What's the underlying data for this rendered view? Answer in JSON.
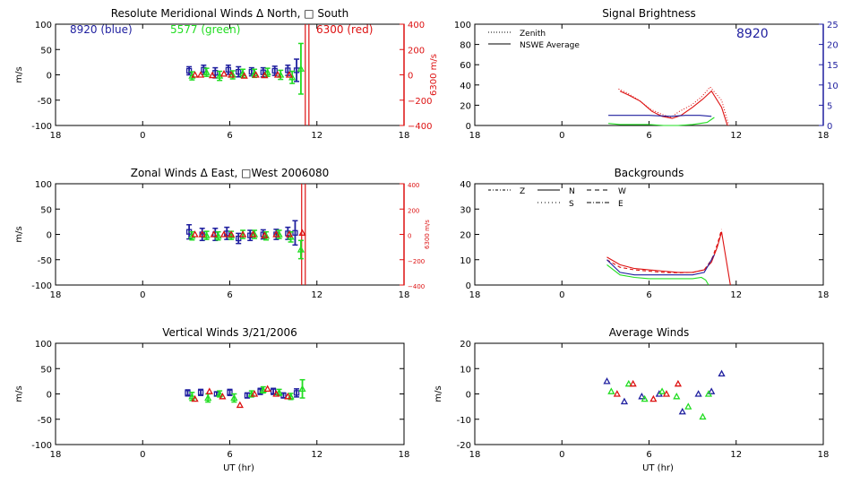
{
  "colors": {
    "blue": "#1f1f9f",
    "green": "#22dd22",
    "red": "#dd1111",
    "black": "#000000",
    "axis_blue": "#1f1f9f"
  },
  "x_ticks": [
    "18",
    "0",
    "6",
    "12",
    "18"
  ],
  "xlabel": "UT (hr)",
  "chart_data": [
    {
      "id": "meridional",
      "type": "scatter",
      "title": "Resolute Meridional Winds Δ North, □ South",
      "ylabel": "m/s",
      "xlim": [
        18,
        42
      ],
      "ylim": [
        -100,
        100
      ],
      "y_ticks": [
        "100",
        "50",
        "0",
        "-50",
        "-100"
      ],
      "y2_label": "6300 m/s",
      "y2_ticks": [
        "400",
        "200",
        "0",
        "−200",
        "−400"
      ],
      "legend_labels": [
        {
          "text": "8920 (blue)",
          "color": "blue"
        },
        {
          "text": "5577 (green)",
          "color": "green"
        },
        {
          "text": "6300 (red)",
          "color": "red"
        }
      ],
      "series": [
        {
          "color": "blue",
          "marker": "square",
          "x": [
            27.2,
            28.2,
            29.0,
            29.9,
            30.6,
            31.5,
            32.3,
            33.1,
            34.0,
            34.6
          ],
          "y": [
            8,
            10,
            4,
            10,
            6,
            6,
            5,
            8,
            9,
            9
          ],
          "err": [
            8,
            9,
            10,
            9,
            10,
            8,
            9,
            9,
            10,
            22
          ]
        },
        {
          "color": "green",
          "marker": "triangle",
          "x": [
            27.4,
            28.4,
            29.3,
            30.2,
            30.9,
            31.7,
            32.6,
            33.5,
            34.3,
            34.9
          ],
          "y": [
            -2,
            5,
            -2,
            0,
            3,
            3,
            5,
            0,
            -5,
            12
          ],
          "err": [
            8,
            8,
            9,
            8,
            8,
            8,
            8,
            9,
            12,
            50
          ]
        },
        {
          "color": "red",
          "marker": "triangle",
          "x": [
            27.6,
            28.0,
            28.8,
            29.6,
            30.1,
            31.0,
            31.8,
            32.4,
            33.3,
            34.1
          ],
          "y": [
            0,
            0,
            -1,
            2,
            0,
            -2,
            0,
            -1,
            0,
            0
          ],
          "err": [
            0,
            0,
            0,
            0,
            0,
            0,
            0,
            0,
            0,
            0
          ]
        }
      ],
      "red_spike_x": [
        35.2,
        35.45
      ]
    },
    {
      "id": "zonal",
      "type": "scatter",
      "title": "Zonal Winds Δ East, □West 2006080",
      "ylabel": "m/s",
      "xlim": [
        18,
        42
      ],
      "ylim": [
        -100,
        100
      ],
      "y_ticks": [
        "100",
        "50",
        "0",
        "-50",
        "-100"
      ],
      "y2_label": "6300 m/s",
      "y2_ticks": [
        "400",
        "200",
        "0",
        "−200",
        "−400"
      ],
      "series": [
        {
          "color": "blue",
          "marker": "square",
          "x": [
            27.2,
            28.1,
            29.0,
            29.8,
            30.6,
            31.4,
            32.3,
            33.2,
            34.0,
            34.5
          ],
          "y": [
            5,
            0,
            0,
            2,
            -8,
            -2,
            0,
            0,
            2,
            3
          ],
          "err": [
            14,
            12,
            12,
            12,
            10,
            10,
            9,
            10,
            12,
            24
          ]
        },
        {
          "color": "green",
          "marker": "triangle",
          "x": [
            27.4,
            28.4,
            29.2,
            30.1,
            30.9,
            31.7,
            32.5,
            33.4,
            34.2,
            34.9
          ],
          "y": [
            -3,
            -2,
            -3,
            -2,
            0,
            0,
            -3,
            0,
            -5,
            -30
          ],
          "err": [
            8,
            8,
            8,
            8,
            8,
            8,
            8,
            8,
            10,
            18
          ]
        },
        {
          "color": "red",
          "marker": "triangle",
          "x": [
            27.6,
            28.1,
            28.9,
            29.6,
            30.1,
            30.9,
            31.6,
            32.4,
            33.2,
            34.1,
            35.0
          ],
          "y": [
            0,
            0,
            0,
            0,
            0,
            0,
            0,
            -2,
            0,
            0,
            3
          ],
          "err": [
            0,
            0,
            0,
            0,
            0,
            0,
            0,
            0,
            0,
            0,
            0
          ]
        }
      ],
      "red_spike_x": [
        34.95,
        35.2
      ]
    },
    {
      "id": "vertical",
      "type": "scatter",
      "title": "Vertical Winds 3/21/2006",
      "ylabel": "m/s",
      "xlim": [
        18,
        42
      ],
      "ylim": [
        -100,
        100
      ],
      "y_ticks": [
        "100",
        "50",
        "0",
        "-50",
        "-100"
      ],
      "series": [
        {
          "color": "blue",
          "marker": "square",
          "x": [
            27.1,
            28.0,
            29.1,
            30.0,
            31.2,
            32.1,
            33.0,
            33.7,
            34.6
          ],
          "y": [
            2,
            3,
            0,
            3,
            -3,
            5,
            5,
            -3,
            2
          ],
          "err": [
            6,
            6,
            4,
            6,
            5,
            6,
            6,
            5,
            8
          ]
        },
        {
          "color": "green",
          "marker": "triangle",
          "x": [
            27.4,
            28.5,
            29.3,
            30.3,
            31.5,
            32.3,
            33.4,
            34.2,
            35.0
          ],
          "y": [
            -5,
            -8,
            0,
            -8,
            0,
            8,
            3,
            -5,
            10
          ],
          "err": [
            8,
            8,
            6,
            8,
            6,
            6,
            6,
            6,
            18
          ]
        },
        {
          "color": "red",
          "marker": "triangle",
          "x": [
            27.6,
            28.6,
            29.5,
            30.7,
            31.7,
            32.6,
            33.2,
            34.0
          ],
          "y": [
            -10,
            5,
            -5,
            -22,
            0,
            10,
            0,
            -5
          ],
          "err": [
            0,
            0,
            0,
            0,
            0,
            0,
            0,
            0
          ]
        }
      ]
    },
    {
      "id": "brightness",
      "type": "line",
      "title": "Signal Brightness",
      "xlim": [
        18,
        42
      ],
      "ylim": [
        0,
        100
      ],
      "y_ticks": [
        "100",
        "80",
        "60",
        "40",
        "20",
        "0"
      ],
      "y2_ticks": [
        "25",
        "20",
        "15",
        "10",
        "5",
        "0"
      ],
      "legend_labels": [
        "Zenith",
        "NSWE Average"
      ],
      "annotation": "8920",
      "series": [
        {
          "color": "red",
          "style": "dotted",
          "x": [
            27.9,
            28.5,
            29.3,
            30.1,
            30.9,
            31.5,
            32.1,
            32.9,
            33.6,
            34.2,
            35.0,
            35.5
          ],
          "y": [
            36,
            32,
            25,
            16,
            11,
            8,
            14,
            20,
            28,
            38,
            25,
            0
          ]
        },
        {
          "color": "red",
          "style": "solid",
          "x": [
            28.0,
            28.6,
            29.4,
            30.2,
            30.9,
            31.6,
            32.2,
            33.0,
            33.7,
            34.3,
            35.0,
            35.4
          ],
          "y": [
            34,
            30,
            24,
            14,
            9,
            7,
            10,
            18,
            26,
            34,
            18,
            0
          ]
        },
        {
          "color": "blue",
          "style": "solid",
          "x": [
            27.2,
            28.5,
            30.0,
            31.5,
            32.5,
            33.5,
            34.3
          ],
          "y": [
            10,
            10,
            10,
            9,
            10,
            10,
            9
          ]
        },
        {
          "color": "green",
          "style": "solid",
          "x": [
            27.2,
            28.0,
            29.0,
            30.0,
            31.0,
            32.0,
            33.0,
            34.0,
            34.5
          ],
          "y": [
            2,
            1,
            1,
            1,
            0,
            0,
            1,
            3,
            8
          ]
        }
      ]
    },
    {
      "id": "backgrounds",
      "type": "line",
      "title": "Backgrounds",
      "xlim": [
        18,
        42
      ],
      "ylim": [
        0,
        40
      ],
      "y_ticks": [
        "40",
        "30",
        "20",
        "10",
        "0"
      ],
      "legend_labels": [
        "Z",
        "N",
        "W",
        "S",
        "E"
      ],
      "series": [
        {
          "color": "red",
          "style": "solid",
          "x": [
            27.1,
            28.0,
            29.0,
            30.0,
            31.0,
            32.0,
            33.0,
            33.8,
            34.3,
            34.7,
            35.0,
            35.6
          ],
          "y": [
            11,
            8,
            6.5,
            6,
            5.5,
            5,
            5,
            6,
            9,
            15,
            21,
            0
          ]
        },
        {
          "color": "red",
          "style": "dashed",
          "x": [
            27.1,
            28.0,
            29.0,
            30.0,
            31.0,
            32.0,
            33.0,
            33.8,
            34.3,
            34.7,
            35.0
          ],
          "y": [
            10,
            7,
            6,
            5.5,
            5,
            4.8,
            5,
            6,
            10,
            16,
            22
          ]
        },
        {
          "color": "blue",
          "style": "solid",
          "x": [
            27.1,
            28.0,
            29.0,
            30.0,
            31.0,
            32.0,
            33.0,
            33.8,
            34.2,
            34.5
          ],
          "y": [
            10,
            5,
            4,
            4,
            4,
            4,
            4,
            5,
            9,
            12
          ]
        },
        {
          "color": "green",
          "style": "solid",
          "x": [
            27.1,
            28.0,
            29.0,
            30.0,
            31.0,
            32.0,
            33.0,
            33.6,
            33.9,
            34.1
          ],
          "y": [
            8,
            4,
            3,
            2.5,
            2.5,
            2.5,
            2.5,
            3,
            2,
            0
          ]
        }
      ]
    },
    {
      "id": "average",
      "type": "scatter",
      "title": "Average Winds",
      "ylabel": "m/s",
      "xlim": [
        18,
        42
      ],
      "ylim": [
        -20,
        20
      ],
      "y_ticks": [
        "20",
        "10",
        "0",
        "-10",
        "-20"
      ],
      "series": [
        {
          "color": "blue",
          "marker": "triangle",
          "x": [
            27.1,
            28.3,
            29.5,
            30.7,
            32.3,
            33.4,
            34.3,
            35.0
          ],
          "y": [
            5,
            -3,
            -1,
            0,
            -7,
            0,
            1,
            8
          ]
        },
        {
          "color": "green",
          "marker": "triangle",
          "x": [
            27.4,
            28.6,
            29.7,
            30.9,
            31.9,
            32.7,
            33.7,
            34.1
          ],
          "y": [
            1,
            4,
            -2,
            1,
            -1,
            -5,
            -9,
            0
          ]
        },
        {
          "color": "red",
          "marker": "triangle",
          "x": [
            27.8,
            28.9,
            30.3,
            31.2,
            32.0
          ],
          "y": [
            0,
            4,
            -2,
            0,
            4
          ]
        }
      ]
    }
  ]
}
